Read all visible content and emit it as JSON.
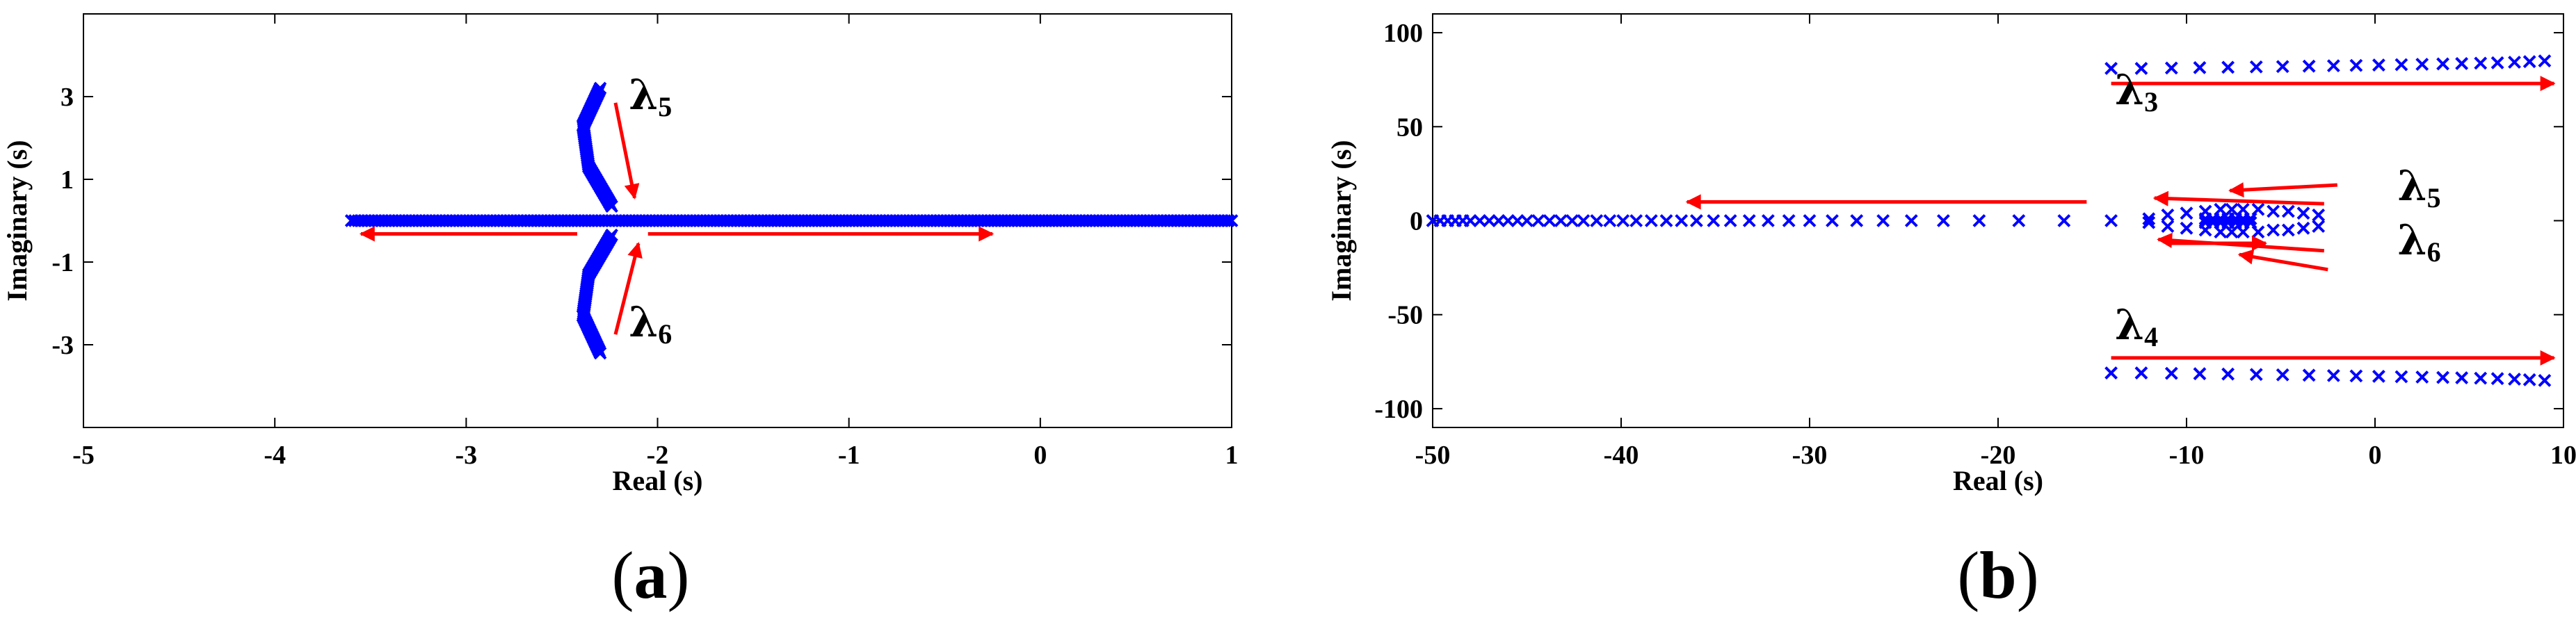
{
  "chart_data": [
    {
      "type": "scatter",
      "panel_label": "a",
      "xlabel": "Real (s)",
      "ylabel": "Imaginary (s)",
      "xlim": [
        -5,
        1
      ],
      "ylim": [
        -5,
        5
      ],
      "xticks": [
        -5,
        -4,
        -3,
        -2,
        -1,
        0,
        1
      ],
      "yticks": [
        3,
        1,
        -1,
        -3
      ],
      "marker": "x",
      "marker_color": "#0000ff",
      "arrow_color": "#ff0000",
      "series": [
        {
          "real_axis_x": [
            -3.6,
            1.0
          ],
          "imag": 0
        },
        {
          "upper_branch_x": [
            -2.3,
            -2.39,
            -2.36,
            -2.24
          ],
          "upper_branch_y": [
            3.2,
            2.3,
            1.3,
            0.35
          ]
        },
        {
          "lower_branch_x": [
            -2.3,
            -2.39,
            -2.36,
            -2.24
          ],
          "lower_branch_y": [
            -3.2,
            -2.3,
            -1.3,
            -0.35
          ]
        }
      ],
      "annotations": [
        {
          "symbol": "λ",
          "sub": "5",
          "x": -2.15,
          "y": 2.7
        },
        {
          "symbol": "λ",
          "sub": "6",
          "x": -2.15,
          "y": -2.8
        }
      ],
      "arrows": [
        {
          "from": [
            -2.42,
            -0.32
          ],
          "to": [
            -3.55,
            -0.32
          ]
        },
        {
          "from": [
            -2.05,
            -0.32
          ],
          "to": [
            -0.25,
            -0.32
          ]
        },
        {
          "from": [
            -2.22,
            2.85
          ],
          "to": [
            -2.12,
            0.55
          ]
        },
        {
          "from": [
            -2.22,
            -2.75
          ],
          "to": [
            -2.1,
            -0.55
          ]
        }
      ]
    },
    {
      "type": "scatter",
      "panel_label": "b",
      "xlabel": "Real (s)",
      "ylabel": "Imaginary (s)",
      "xlim": [
        -50,
        10
      ],
      "ylim": [
        -110,
        110
      ],
      "xticks": [
        -50,
        -40,
        -30,
        -20,
        -10,
        0,
        10
      ],
      "yticks": [
        100,
        50,
        0,
        -50,
        -100
      ],
      "marker": "x",
      "marker_color": "#0000ff",
      "arrow_color": "#ff0000",
      "series": [
        {
          "name_role": "real",
          "x": [
            -50,
            -49.6,
            -49.2,
            -48.8,
            -48.4,
            -48.0,
            -47.5,
            -47.0,
            -46.5,
            -46.0,
            -45.5,
            -45.0,
            -44.4,
            -43.8,
            -43.2,
            -42.6,
            -42.0,
            -41.3,
            -40.6,
            -39.9,
            -39.2,
            -38.4,
            -37.6,
            -36.8,
            -36.0,
            -35.1,
            -34.2,
            -33.2,
            -32.2,
            -31.1,
            -30.0,
            -28.8,
            -27.5,
            -26.1,
            -24.6,
            -22.9,
            -21.0,
            -18.9,
            -16.5,
            -14.0
          ]
        },
        {
          "name_role": "lambda3",
          "x": [
            -14,
            -12.4,
            -10.8,
            -9.3,
            -7.8,
            -6.3,
            -4.9,
            -3.5,
            -2.2,
            -1.0,
            0.2,
            1.4,
            2.5,
            3.6,
            4.6,
            5.6,
            6.5,
            7.4,
            8.2,
            9.0
          ],
          "y": [
            81,
            81,
            81.2,
            81.4,
            81.6,
            81.8,
            82,
            82.2,
            82.4,
            82.6,
            82.8,
            83,
            83.2,
            83.4,
            83.6,
            83.8,
            84,
            84.3,
            84.6,
            85
          ]
        },
        {
          "name_role": "lambda4",
          "x": [
            -14,
            -12.4,
            -10.8,
            -9.3,
            -7.8,
            -6.3,
            -4.9,
            -3.5,
            -2.2,
            -1.0,
            0.2,
            1.4,
            2.5,
            3.6,
            4.6,
            5.6,
            6.5,
            7.4,
            8.2,
            9.0
          ],
          "y": [
            -81,
            -81,
            -81.2,
            -81.4,
            -81.6,
            -81.8,
            -82,
            -82.2,
            -82.4,
            -82.6,
            -82.8,
            -83,
            -83.2,
            -83.4,
            -83.6,
            -83.8,
            -84,
            -84.3,
            -84.6,
            -85
          ]
        },
        {
          "name_role": "lambda5",
          "x": [
            -12,
            -11,
            -10,
            -9,
            -8.2,
            -7.6,
            -7,
            -6.2,
            -5.4,
            -4.6,
            -3.8,
            -3
          ],
          "y": [
            1,
            3,
            4,
            5,
            6,
            6,
            6,
            6,
            5,
            5,
            4,
            3
          ]
        },
        {
          "name_role": "lambda6",
          "x": [
            -12,
            -11,
            -10,
            -9,
            -8.2,
            -7.6,
            -7,
            -6.2,
            -5.4,
            -4.6,
            -3.8,
            -3
          ],
          "y": [
            -1,
            -3,
            -4,
            -5,
            -6,
            -6,
            -6,
            -6,
            -5,
            -5,
            -4,
            -3
          ]
        },
        {
          "name_role": "cluster",
          "x": [
            -9,
            -8.6,
            -8.2,
            -7.8,
            -7.4,
            -7.0,
            -6.6,
            -9,
            -8.6,
            -8.2,
            -7.8,
            -7.4,
            -7.0,
            -6.6
          ],
          "y": [
            1,
            1,
            1,
            1,
            1,
            1,
            1,
            -1,
            -1,
            -1,
            -1,
            -1,
            -1,
            -1
          ]
        }
      ],
      "annotations": [
        {
          "symbol": "λ",
          "sub": "3",
          "x": -13.8,
          "y": 62
        },
        {
          "symbol": "λ",
          "sub": "4",
          "x": -13.8,
          "y": -63
        },
        {
          "symbol": "λ",
          "sub": "5",
          "x": 1.2,
          "y": 11
        },
        {
          "symbol": "λ",
          "sub": "6",
          "x": 1.2,
          "y": -18
        }
      ],
      "arrows": [
        {
          "from": [
            -14,
            73
          ],
          "to": [
            9.5,
            73
          ]
        },
        {
          "from": [
            -14,
            -73
          ],
          "to": [
            9.5,
            -73
          ]
        },
        {
          "from": [
            -15.3,
            10
          ],
          "to": [
            -36.5,
            10
          ]
        },
        {
          "from": [
            -2.0,
            19
          ],
          "to": [
            -7.7,
            16
          ]
        },
        {
          "from": [
            -2.7,
            9
          ],
          "to": [
            -11.7,
            12
          ]
        },
        {
          "from": [
            -2.7,
            -16
          ],
          "to": [
            -11.5,
            -10
          ]
        },
        {
          "from": [
            -2.5,
            -26
          ],
          "to": [
            -7.2,
            -18
          ]
        },
        {
          "from": [
            -10.8,
            -12
          ],
          "to": [
            -5.8,
            -12
          ]
        }
      ]
    }
  ]
}
